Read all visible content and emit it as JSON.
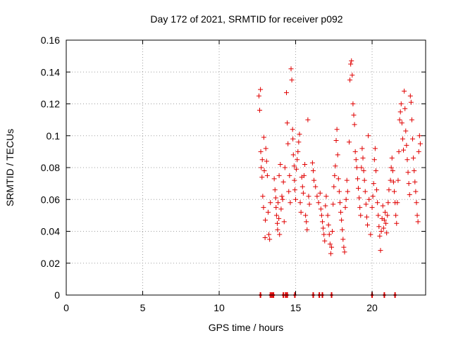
{
  "chart_data": {
    "type": "scatter",
    "title": "Day 172 of 2021, SRMTID for receiver p092",
    "xlabel": "GPS time / hours",
    "ylabel": "SRMTID / TECUs",
    "xlim": [
      0,
      23.5
    ],
    "ylim": [
      0,
      0.16
    ],
    "xticks": [
      "0",
      "5",
      "10",
      "15",
      "20"
    ],
    "yticks": [
      "0",
      "0.02",
      "0.04",
      "0.06",
      "0.08",
      "0.1",
      "0.12",
      "0.14",
      "0.16"
    ],
    "grid": true,
    "marker": "+",
    "color": "#e00000",
    "series": [
      {
        "name": "SRMTID",
        "points": [
          [
            12.6,
            0.125
          ],
          [
            12.65,
            0.116
          ],
          [
            12.7,
            0.129
          ],
          [
            12.72,
            0.09
          ],
          [
            12.75,
            0.08
          ],
          [
            12.8,
            0.074
          ],
          [
            12.82,
            0.085
          ],
          [
            12.85,
            0.062
          ],
          [
            12.9,
            0.055
          ],
          [
            12.92,
            0.099
          ],
          [
            12.95,
            0.078
          ],
          [
            13.0,
            0.036
          ],
          [
            13.02,
            0.047
          ],
          [
            13.05,
            0.092
          ],
          [
            13.1,
            0.084
          ],
          [
            13.15,
            0.075
          ],
          [
            13.2,
            0.052
          ],
          [
            13.25,
            0.038
          ],
          [
            13.3,
            0.035
          ],
          [
            13.35,
            0.058
          ],
          [
            13.6,
            0.073
          ],
          [
            13.65,
            0.066
          ],
          [
            13.7,
            0.061
          ],
          [
            13.72,
            0.055
          ],
          [
            13.75,
            0.05
          ],
          [
            13.8,
            0.045
          ],
          [
            13.82,
            0.041
          ],
          [
            13.85,
            0.058
          ],
          [
            13.9,
            0.048
          ],
          [
            13.92,
            0.075
          ],
          [
            13.95,
            0.038
          ],
          [
            14.0,
            0.082
          ],
          [
            14.05,
            0.054
          ],
          [
            14.1,
            0.062
          ],
          [
            14.15,
            0.06
          ],
          [
            14.2,
            0.071
          ],
          [
            14.25,
            0.046
          ],
          [
            14.3,
            0.08
          ],
          [
            14.4,
            0.127
          ],
          [
            14.45,
            0.108
          ],
          [
            14.5,
            0.095
          ],
          [
            14.55,
            0.065
          ],
          [
            14.6,
            0.075
          ],
          [
            14.65,
            0.058
          ],
          [
            14.7,
            0.142
          ],
          [
            14.75,
            0.135
          ],
          [
            14.8,
            0.104
          ],
          [
            14.82,
            0.098
          ],
          [
            14.85,
            0.088
          ],
          [
            14.9,
            0.081
          ],
          [
            14.92,
            0.072
          ],
          [
            14.95,
            0.066
          ],
          [
            15.0,
            0.06
          ],
          [
            15.05,
            0.079
          ],
          [
            15.1,
            0.085
          ],
          [
            15.15,
            0.09
          ],
          [
            15.2,
            0.096
          ],
          [
            15.25,
            0.101
          ],
          [
            15.3,
            0.058
          ],
          [
            15.35,
            0.052
          ],
          [
            15.4,
            0.074
          ],
          [
            15.45,
            0.068
          ],
          [
            15.5,
            0.064
          ],
          [
            15.55,
            0.075
          ],
          [
            15.6,
            0.082
          ],
          [
            15.65,
            0.05
          ],
          [
            15.7,
            0.046
          ],
          [
            15.75,
            0.041
          ],
          [
            15.8,
            0.11
          ],
          [
            15.85,
            0.062
          ],
          [
            15.9,
            0.057
          ],
          [
            16.1,
            0.083
          ],
          [
            16.15,
            0.078
          ],
          [
            16.2,
            0.072
          ],
          [
            16.3,
            0.068
          ],
          [
            16.4,
            0.062
          ],
          [
            16.5,
            0.058
          ],
          [
            16.6,
            0.064
          ],
          [
            16.65,
            0.054
          ],
          [
            16.7,
            0.05
          ],
          [
            16.75,
            0.046
          ],
          [
            16.8,
            0.042
          ],
          [
            16.85,
            0.038
          ],
          [
            16.9,
            0.034
          ],
          [
            16.95,
            0.056
          ],
          [
            17.0,
            0.062
          ],
          [
            17.1,
            0.05
          ],
          [
            17.15,
            0.044
          ],
          [
            17.2,
            0.038
          ],
          [
            17.25,
            0.032
          ],
          [
            17.3,
            0.026
          ],
          [
            17.35,
            0.03
          ],
          [
            17.4,
            0.04
          ],
          [
            17.45,
            0.057
          ],
          [
            17.5,
            0.068
          ],
          [
            17.55,
            0.075
          ],
          [
            17.6,
            0.081
          ],
          [
            17.65,
            0.097
          ],
          [
            17.7,
            0.104
          ],
          [
            17.75,
            0.088
          ],
          [
            17.8,
            0.073
          ],
          [
            17.85,
            0.065
          ],
          [
            17.9,
            0.058
          ],
          [
            17.95,
            0.052
          ],
          [
            18.0,
            0.047
          ],
          [
            18.05,
            0.041
          ],
          [
            18.1,
            0.035
          ],
          [
            18.15,
            0.03
          ],
          [
            18.2,
            0.027
          ],
          [
            18.25,
            0.055
          ],
          [
            18.3,
            0.06
          ],
          [
            18.35,
            0.072
          ],
          [
            18.4,
            0.065
          ],
          [
            18.5,
            0.096
          ],
          [
            18.55,
            0.135
          ],
          [
            18.6,
            0.145
          ],
          [
            18.65,
            0.147
          ],
          [
            18.7,
            0.138
          ],
          [
            18.75,
            0.12
          ],
          [
            18.8,
            0.113
          ],
          [
            18.85,
            0.107
          ],
          [
            18.9,
            0.09
          ],
          [
            18.95,
            0.085
          ],
          [
            19.0,
            0.08
          ],
          [
            19.05,
            0.073
          ],
          [
            19.1,
            0.067
          ],
          [
            19.15,
            0.061
          ],
          [
            19.2,
            0.055
          ],
          [
            19.25,
            0.05
          ],
          [
            19.3,
            0.08
          ],
          [
            19.35,
            0.092
          ],
          [
            19.4,
            0.086
          ],
          [
            19.45,
            0.078
          ],
          [
            19.5,
            0.072
          ],
          [
            19.55,
            0.065
          ],
          [
            19.6,
            0.057
          ],
          [
            19.65,
            0.049
          ],
          [
            19.7,
            0.044
          ],
          [
            19.75,
            0.1
          ],
          [
            19.8,
            0.06
          ],
          [
            19.9,
            0.038
          ],
          [
            20.0,
            0.055
          ],
          [
            20.05,
            0.062
          ],
          [
            20.1,
            0.07
          ],
          [
            20.15,
            0.085
          ],
          [
            20.2,
            0.092
          ],
          [
            20.25,
            0.078
          ],
          [
            20.3,
            0.066
          ],
          [
            20.35,
            0.058
          ],
          [
            20.4,
            0.05
          ],
          [
            20.45,
            0.043
          ],
          [
            20.5,
            0.037
          ],
          [
            20.55,
            0.028
          ],
          [
            20.6,
            0.04
          ],
          [
            20.65,
            0.048
          ],
          [
            20.7,
            0.056
          ],
          [
            20.75,
            0.042
          ],
          [
            20.8,
            0.047
          ],
          [
            20.85,
            0.052
          ],
          [
            20.9,
            0.045
          ],
          [
            20.95,
            0.039
          ],
          [
            21.0,
            0.05
          ],
          [
            21.05,
            0.058
          ],
          [
            21.1,
            0.066
          ],
          [
            21.2,
            0.072
          ],
          [
            21.25,
            0.08
          ],
          [
            21.3,
            0.086
          ],
          [
            21.35,
            0.078
          ],
          [
            21.4,
            0.071
          ],
          [
            21.45,
            0.065
          ],
          [
            21.5,
            0.058
          ],
          [
            21.55,
            0.05
          ],
          [
            21.6,
            0.045
          ],
          [
            21.65,
            0.058
          ],
          [
            21.7,
            0.072
          ],
          [
            21.75,
            0.09
          ],
          [
            21.8,
            0.11
          ],
          [
            21.85,
            0.115
          ],
          [
            21.9,
            0.12
          ],
          [
            21.95,
            0.108
          ],
          [
            22.0,
            0.098
          ],
          [
            22.05,
            0.091
          ],
          [
            22.1,
            0.128
          ],
          [
            22.15,
            0.117
          ],
          [
            22.2,
            0.103
          ],
          [
            22.25,
            0.094
          ],
          [
            22.3,
            0.085
          ],
          [
            22.35,
            0.077
          ],
          [
            22.4,
            0.07
          ],
          [
            22.45,
            0.063
          ],
          [
            22.5,
            0.125
          ],
          [
            22.55,
            0.121
          ],
          [
            22.6,
            0.11
          ],
          [
            22.65,
            0.098
          ],
          [
            22.7,
            0.086
          ],
          [
            22.75,
            0.078
          ],
          [
            22.8,
            0.071
          ],
          [
            22.85,
            0.065
          ],
          [
            22.9,
            0.058
          ],
          [
            22.95,
            0.05
          ],
          [
            23.0,
            0.046
          ],
          [
            23.05,
            0.09
          ],
          [
            23.1,
            0.1
          ],
          [
            23.15,
            0.095
          ]
        ]
      }
    ],
    "zero_points_x": [
      12.7,
      13.35,
      13.45,
      13.55,
      14.2,
      14.35,
      14.45,
      14.95,
      16.15,
      16.55,
      16.75,
      17.35,
      20.0,
      20.8,
      21.5
    ]
  }
}
